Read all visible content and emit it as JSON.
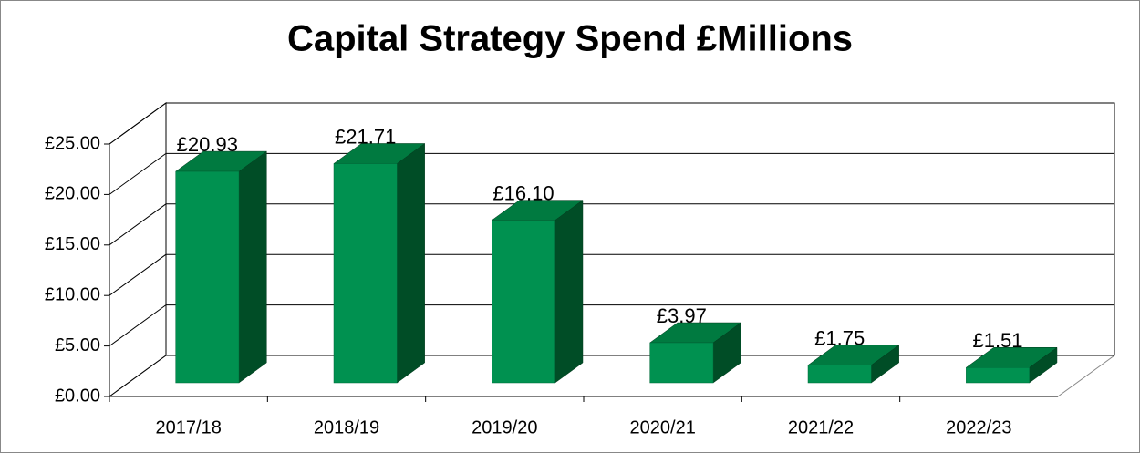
{
  "chart_data": {
    "type": "bar3d",
    "title": "Capital Strategy Spend £Millions",
    "categories": [
      "2017/18",
      "2018/19",
      "2019/20",
      "2020/21",
      "2021/22",
      "2022/23"
    ],
    "values": [
      20.93,
      21.71,
      16.1,
      3.97,
      1.75,
      1.51
    ],
    "value_labels": [
      "£20.93",
      "£21.71",
      "£16.10",
      "£3.97",
      "£1.75",
      "£1.51"
    ],
    "color": "#009150",
    "ylim": [
      0,
      25
    ],
    "yticks": [
      {
        "value": 0,
        "label": "£0.00"
      },
      {
        "value": 5,
        "label": "£5.00"
      },
      {
        "value": 10,
        "label": "£10.00"
      },
      {
        "value": 15,
        "label": "£15.00"
      },
      {
        "value": 20,
        "label": "£20.00"
      },
      {
        "value": 25,
        "label": "£25.00"
      }
    ],
    "grid": true
  }
}
